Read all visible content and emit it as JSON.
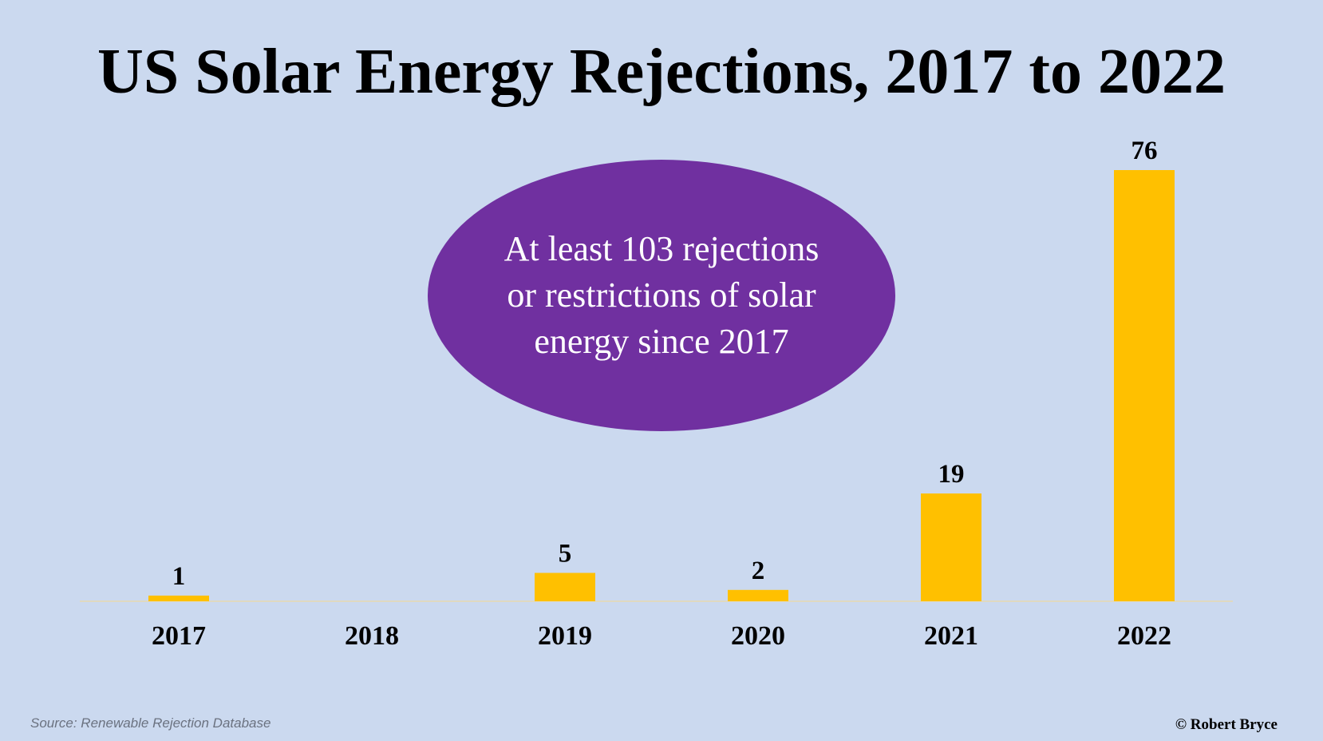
{
  "chart_data": {
    "type": "bar",
    "title": "US Solar Energy Rejections, 2017 to 2022",
    "categories": [
      "2017",
      "2018",
      "2019",
      "2020",
      "2021",
      "2022"
    ],
    "series": [
      {
        "values": [
          1,
          0,
          5,
          2,
          19,
          76
        ],
        "color": "#ffc000"
      }
    ],
    "data_labels": [
      "1",
      "",
      "5",
      "2",
      "19",
      "76"
    ],
    "ylim": [
      0,
      76
    ],
    "grid": false,
    "legend": "none",
    "xlabel": "",
    "ylabel": "",
    "annotation": {
      "text": "At least 103 rejections or restrictions of solar energy since 2017",
      "fill_color": "#7030a0",
      "text_color": "#ffffff"
    }
  },
  "colors": {
    "background": "#cbd9ef",
    "bar": "#ffc000",
    "callout": "#7030a0"
  },
  "footer": {
    "source": "Source: Renewable Rejection Database",
    "credit": "© Robert Bryce"
  }
}
